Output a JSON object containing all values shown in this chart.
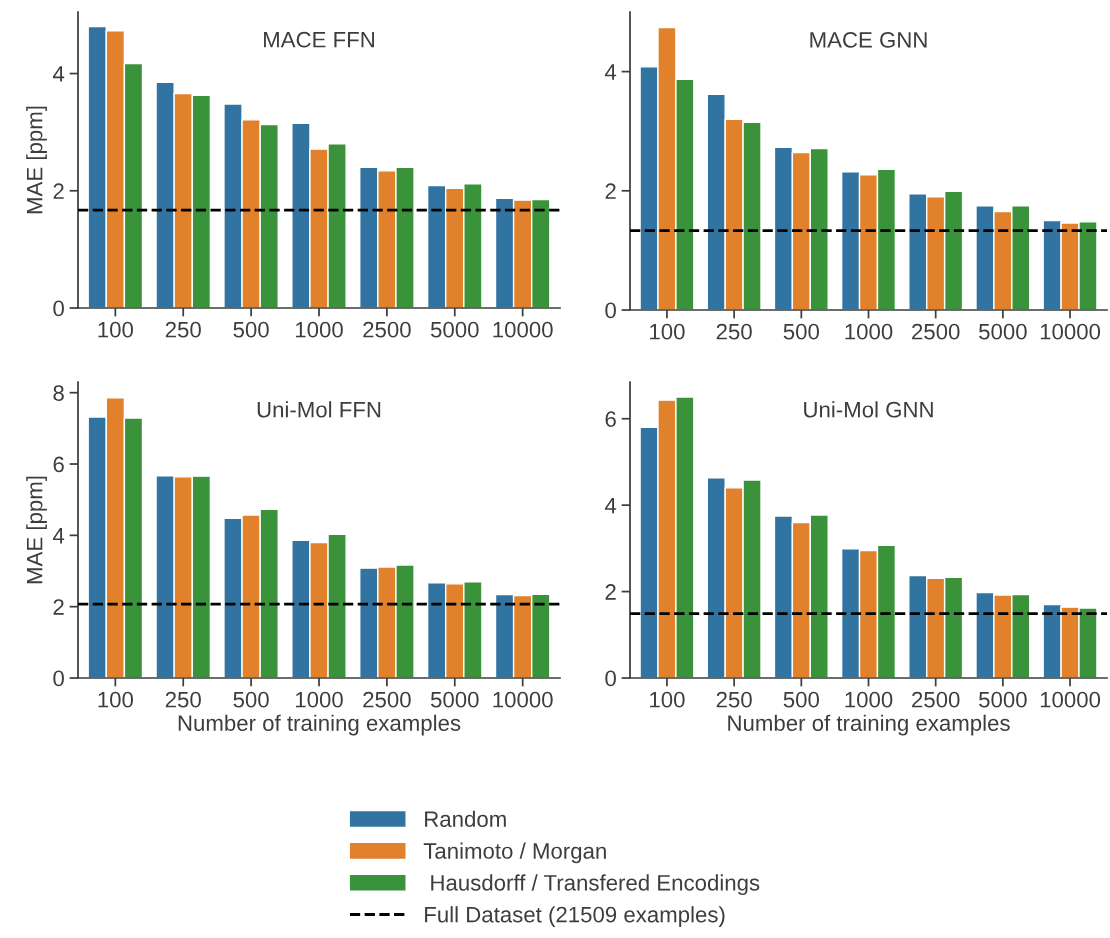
{
  "chart_data": [
    {
      "type": "bar",
      "title": "MACE FFN",
      "ylabel": "MAE [ppm]",
      "categories": [
        "100",
        "250",
        "500",
        "1000",
        "2500",
        "5000",
        "10000"
      ],
      "ylim": [
        0,
        5.05
      ],
      "yticks": [
        0,
        2,
        4
      ],
      "grid": false,
      "legend": "bottom",
      "series": [
        {
          "name": "Random",
          "color": "#3274a1",
          "values": [
            4.8,
            3.85,
            3.48,
            3.15,
            2.4,
            2.09,
            1.87
          ]
        },
        {
          "name": "Tanimoto / Morgan",
          "color": "#e1812c",
          "values": [
            4.73,
            3.66,
            3.21,
            2.71,
            2.34,
            2.04,
            1.84
          ]
        },
        {
          "name": " Hausdorff / Transfered Encodings",
          "color": "#3a923a",
          "values": [
            4.17,
            3.63,
            3.13,
            2.8,
            2.4,
            2.12,
            1.85
          ]
        }
      ],
      "ref_lines": [
        {
          "axis": "y",
          "value": 1.67,
          "label": "Full Dataset (21509 examples)",
          "color": "#000000",
          "line_style": "dashed"
        }
      ]
    },
    {
      "type": "bar",
      "title": "MACE GNN",
      "categories": [
        "100",
        "250",
        "500",
        "1000",
        "2500",
        "5000",
        "10000"
      ],
      "ylim": [
        0,
        5.0
      ],
      "yticks": [
        0,
        2,
        4
      ],
      "grid": false,
      "series": [
        {
          "color": "#3274a1",
          "values": [
            4.08,
            3.62,
            2.73,
            2.32,
            1.95,
            1.75,
            1.5
          ]
        },
        {
          "color": "#e1812c",
          "values": [
            4.74,
            3.2,
            2.64,
            2.27,
            1.9,
            1.65,
            1.46
          ]
        },
        {
          "color": "#3a923a",
          "values": [
            3.87,
            3.15,
            2.71,
            2.36,
            1.99,
            1.75,
            1.48
          ]
        }
      ],
      "ref_lines": [
        {
          "axis": "y",
          "value": 1.33,
          "color": "#000000",
          "line_style": "dashed"
        }
      ]
    },
    {
      "type": "bar",
      "title": "Uni-Mol FFN",
      "ylabel": "MAE [ppm]",
      "xlabel": "Number of training examples",
      "categories": [
        "100",
        "250",
        "500",
        "1000",
        "2500",
        "5000",
        "10000"
      ],
      "ylim": [
        0,
        8.3
      ],
      "yticks": [
        0,
        2,
        4,
        6,
        8
      ],
      "grid": false,
      "series": [
        {
          "color": "#3274a1",
          "values": [
            7.32,
            5.67,
            4.48,
            3.86,
            3.08,
            2.67,
            2.34
          ]
        },
        {
          "color": "#e1812c",
          "values": [
            7.86,
            5.64,
            4.57,
            3.8,
            3.11,
            2.64,
            2.31
          ]
        },
        {
          "color": "#3a923a",
          "values": [
            7.29,
            5.66,
            4.73,
            4.03,
            3.17,
            2.7,
            2.35
          ]
        }
      ],
      "ref_lines": [
        {
          "axis": "y",
          "value": 2.07,
          "color": "#000000",
          "line_style": "dashed"
        }
      ]
    },
    {
      "type": "bar",
      "title": "Uni-Mol GNN",
      "xlabel": "Number of training examples",
      "categories": [
        "100",
        "250",
        "500",
        "1000",
        "2500",
        "5000",
        "10000"
      ],
      "ylim": [
        0,
        6.85
      ],
      "yticks": [
        0,
        2,
        4,
        6
      ],
      "grid": false,
      "series": [
        {
          "color": "#3274a1",
          "values": [
            5.8,
            4.63,
            3.75,
            2.99,
            2.37,
            1.98,
            1.7
          ]
        },
        {
          "color": "#e1812c",
          "values": [
            6.43,
            4.4,
            3.6,
            2.95,
            2.31,
            1.92,
            1.64
          ]
        },
        {
          "color": "#3a923a",
          "values": [
            6.5,
            4.58,
            3.77,
            3.07,
            2.33,
            1.93,
            1.62
          ]
        }
      ],
      "ref_lines": [
        {
          "axis": "y",
          "value": 1.49,
          "color": "#000000",
          "line_style": "dashed"
        }
      ]
    }
  ]
}
